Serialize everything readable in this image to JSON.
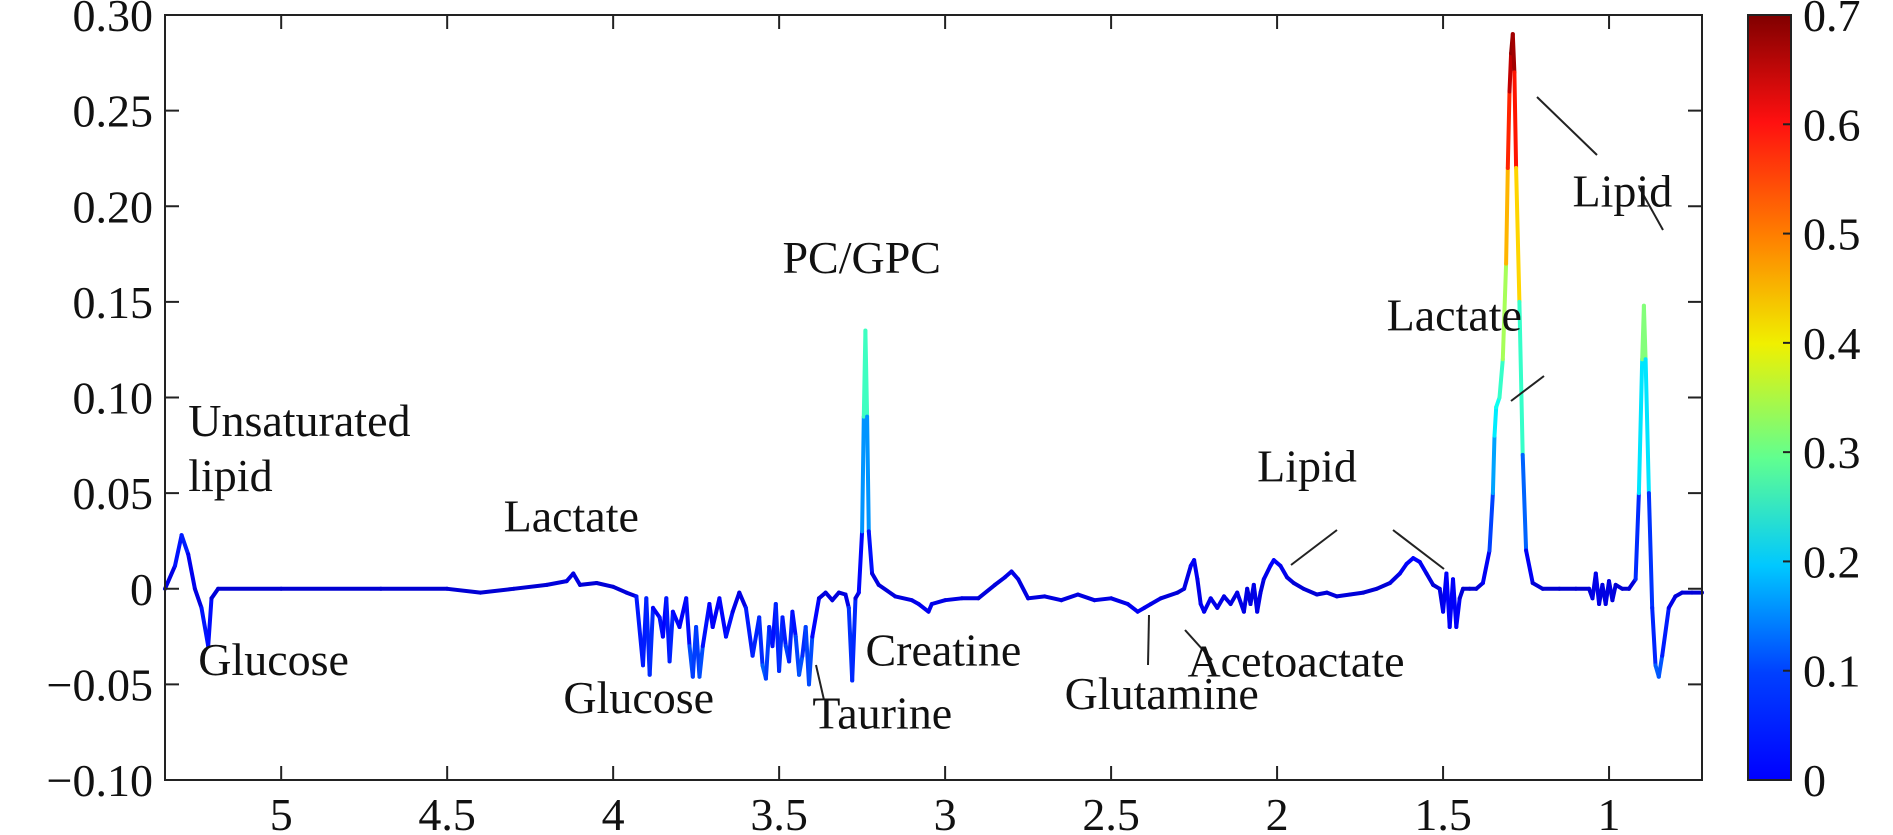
{
  "chart_data": {
    "type": "line",
    "title": "",
    "xlabel": "",
    "ylabel": "",
    "x_reversed": true,
    "xlim": [
      5.35,
      0.72
    ],
    "ylim": [
      -0.1,
      0.3
    ],
    "x_ticks": [
      5,
      4.5,
      4,
      3.5,
      3,
      2.5,
      2,
      1.5,
      1
    ],
    "x_tick_labels": [
      "5",
      "4.5",
      "4",
      "3.5",
      "3",
      "2.5",
      "2",
      "1.5",
      "1"
    ],
    "y_ticks": [
      -0.1,
      -0.05,
      0,
      0.05,
      0.1,
      0.15,
      0.2,
      0.25,
      0.3
    ],
    "y_tick_labels": [
      "−0.10",
      "−0.05",
      "0",
      "0.05",
      "0.10",
      "0.15",
      "0.20",
      "0.25",
      "0.30"
    ],
    "grid": false,
    "colorbar": {
      "colormap": "jet",
      "range": [
        0,
        0.7
      ],
      "tick_labels": [
        "0",
        "0.1",
        "0.2",
        "0.3",
        "0.4",
        "0.5",
        "0.6",
        "0.7"
      ]
    },
    "series": [
      {
        "points": [
          [
            5.35,
            0.0
          ],
          [
            5.32,
            0.012
          ],
          [
            5.3,
            0.028
          ],
          [
            5.28,
            0.018
          ],
          [
            5.26,
            0.0
          ],
          [
            5.24,
            -0.01
          ],
          [
            5.22,
            -0.03
          ],
          [
            5.21,
            -0.005
          ],
          [
            5.19,
            0.0
          ],
          [
            5.0,
            0.0
          ],
          [
            4.7,
            0.0
          ],
          [
            4.5,
            0.0
          ],
          [
            4.4,
            -0.002
          ],
          [
            4.3,
            0.0
          ],
          [
            4.2,
            0.002
          ],
          [
            4.14,
            0.004
          ],
          [
            4.12,
            0.008
          ],
          [
            4.1,
            0.002
          ],
          [
            4.05,
            0.003
          ],
          [
            4.0,
            0.001
          ],
          [
            3.96,
            -0.002
          ],
          [
            3.93,
            -0.004
          ],
          [
            3.91,
            -0.04
          ],
          [
            3.9,
            -0.005
          ],
          [
            3.89,
            -0.045
          ],
          [
            3.88,
            -0.01
          ],
          [
            3.86,
            -0.015
          ],
          [
            3.85,
            -0.025
          ],
          [
            3.84,
            -0.005
          ],
          [
            3.83,
            -0.038
          ],
          [
            3.82,
            -0.012
          ],
          [
            3.8,
            -0.02
          ],
          [
            3.78,
            -0.005
          ],
          [
            3.77,
            -0.03
          ],
          [
            3.76,
            -0.046
          ],
          [
            3.75,
            -0.02
          ],
          [
            3.74,
            -0.046
          ],
          [
            3.73,
            -0.03
          ],
          [
            3.71,
            -0.008
          ],
          [
            3.7,
            -0.02
          ],
          [
            3.68,
            -0.005
          ],
          [
            3.66,
            -0.025
          ],
          [
            3.64,
            -0.012
          ],
          [
            3.62,
            -0.002
          ],
          [
            3.6,
            -0.01
          ],
          [
            3.58,
            -0.035
          ],
          [
            3.56,
            -0.015
          ],
          [
            3.55,
            -0.04
          ],
          [
            3.54,
            -0.047
          ],
          [
            3.53,
            -0.02
          ],
          [
            3.52,
            -0.03
          ],
          [
            3.51,
            -0.008
          ],
          [
            3.5,
            -0.043
          ],
          [
            3.49,
            -0.015
          ],
          [
            3.48,
            -0.03
          ],
          [
            3.47,
            -0.038
          ],
          [
            3.46,
            -0.012
          ],
          [
            3.45,
            -0.025
          ],
          [
            3.44,
            -0.045
          ],
          [
            3.43,
            -0.035
          ],
          [
            3.42,
            -0.02
          ],
          [
            3.41,
            -0.05
          ],
          [
            3.4,
            -0.025
          ],
          [
            3.38,
            -0.005
          ],
          [
            3.36,
            -0.002
          ],
          [
            3.34,
            -0.006
          ],
          [
            3.32,
            -0.002
          ],
          [
            3.3,
            -0.003
          ],
          [
            3.29,
            -0.01
          ],
          [
            3.28,
            -0.048
          ],
          [
            3.27,
            -0.005
          ],
          [
            3.26,
            -0.002
          ],
          [
            3.25,
            0.03
          ],
          [
            3.245,
            0.09
          ],
          [
            3.24,
            0.135
          ],
          [
            3.235,
            0.09
          ],
          [
            3.23,
            0.03
          ],
          [
            3.22,
            0.008
          ],
          [
            3.2,
            0.002
          ],
          [
            3.15,
            -0.004
          ],
          [
            3.1,
            -0.006
          ],
          [
            3.08,
            -0.008
          ],
          [
            3.05,
            -0.012
          ],
          [
            3.04,
            -0.008
          ],
          [
            3.0,
            -0.006
          ],
          [
            2.95,
            -0.005
          ],
          [
            2.9,
            -0.005
          ],
          [
            2.85,
            0.002
          ],
          [
            2.82,
            0.006
          ],
          [
            2.8,
            0.009
          ],
          [
            2.78,
            0.005
          ],
          [
            2.75,
            -0.005
          ],
          [
            2.7,
            -0.004
          ],
          [
            2.65,
            -0.006
          ],
          [
            2.6,
            -0.003
          ],
          [
            2.55,
            -0.006
          ],
          [
            2.5,
            -0.005
          ],
          [
            2.45,
            -0.008
          ],
          [
            2.42,
            -0.012
          ],
          [
            2.4,
            -0.01
          ],
          [
            2.38,
            -0.008
          ],
          [
            2.35,
            -0.005
          ],
          [
            2.3,
            -0.002
          ],
          [
            2.28,
            0.0
          ],
          [
            2.26,
            0.012
          ],
          [
            2.25,
            0.015
          ],
          [
            2.24,
            0.005
          ],
          [
            2.23,
            -0.008
          ],
          [
            2.22,
            -0.012
          ],
          [
            2.2,
            -0.005
          ],
          [
            2.18,
            -0.01
          ],
          [
            2.16,
            -0.004
          ],
          [
            2.14,
            -0.008
          ],
          [
            2.12,
            -0.002
          ],
          [
            2.1,
            -0.012
          ],
          [
            2.09,
            0.0
          ],
          [
            2.08,
            -0.008
          ],
          [
            2.07,
            0.002
          ],
          [
            2.06,
            -0.012
          ],
          [
            2.05,
            -0.002
          ],
          [
            2.04,
            0.005
          ],
          [
            2.02,
            0.012
          ],
          [
            2.01,
            0.015
          ],
          [
            1.99,
            0.012
          ],
          [
            1.97,
            0.006
          ],
          [
            1.95,
            0.003
          ],
          [
            1.92,
            0.0
          ],
          [
            1.88,
            -0.003
          ],
          [
            1.85,
            -0.002
          ],
          [
            1.82,
            -0.004
          ],
          [
            1.78,
            -0.003
          ],
          [
            1.74,
            -0.002
          ],
          [
            1.7,
            0.0
          ],
          [
            1.66,
            0.003
          ],
          [
            1.63,
            0.008
          ],
          [
            1.61,
            0.013
          ],
          [
            1.59,
            0.016
          ],
          [
            1.57,
            0.014
          ],
          [
            1.55,
            0.008
          ],
          [
            1.53,
            0.002
          ],
          [
            1.51,
            0.0
          ],
          [
            1.5,
            -0.012
          ],
          [
            1.49,
            0.008
          ],
          [
            1.48,
            -0.02
          ],
          [
            1.47,
            0.005
          ],
          [
            1.46,
            -0.02
          ],
          [
            1.45,
            -0.005
          ],
          [
            1.44,
            0.0
          ],
          [
            1.42,
            0.0
          ],
          [
            1.4,
            0.0
          ],
          [
            1.38,
            0.003
          ],
          [
            1.36,
            0.02
          ],
          [
            1.35,
            0.05
          ],
          [
            1.345,
            0.08
          ],
          [
            1.34,
            0.095
          ],
          [
            1.33,
            0.1
          ],
          [
            1.32,
            0.12
          ],
          [
            1.31,
            0.17
          ],
          [
            1.305,
            0.22
          ],
          [
            1.3,
            0.26
          ],
          [
            1.295,
            0.28
          ],
          [
            1.29,
            0.29
          ],
          [
            1.285,
            0.27
          ],
          [
            1.28,
            0.22
          ],
          [
            1.27,
            0.15
          ],
          [
            1.26,
            0.07
          ],
          [
            1.25,
            0.02
          ],
          [
            1.23,
            0.003
          ],
          [
            1.2,
            0.0
          ],
          [
            1.15,
            0.0
          ],
          [
            1.1,
            0.0
          ],
          [
            1.06,
            0.0
          ],
          [
            1.05,
            -0.005
          ],
          [
            1.04,
            0.008
          ],
          [
            1.03,
            -0.008
          ],
          [
            1.02,
            0.002
          ],
          [
            1.01,
            -0.008
          ],
          [
            1.0,
            0.004
          ],
          [
            0.99,
            -0.006
          ],
          [
            0.98,
            0.002
          ],
          [
            0.96,
            0.0
          ],
          [
            0.94,
            0.0
          ],
          [
            0.92,
            0.005
          ],
          [
            0.91,
            0.05
          ],
          [
            0.9,
            0.12
          ],
          [
            0.895,
            0.148
          ],
          [
            0.89,
            0.12
          ],
          [
            0.88,
            0.05
          ],
          [
            0.87,
            -0.01
          ],
          [
            0.86,
            -0.04
          ],
          [
            0.85,
            -0.046
          ],
          [
            0.84,
            -0.035
          ],
          [
            0.82,
            -0.01
          ],
          [
            0.8,
            -0.004
          ],
          [
            0.78,
            -0.002
          ],
          [
            0.75,
            -0.002
          ],
          [
            0.72,
            -0.002
          ]
        ]
      }
    ],
    "annotations": [
      {
        "text": "Unsaturated",
        "x": 5.28,
        "y": 0.08
      },
      {
        "text": "lipid",
        "x": 5.28,
        "y": 0.051
      },
      {
        "text": "Glucose",
        "x": 5.25,
        "y": -0.045
      },
      {
        "text": "Lactate",
        "x": 4.33,
        "y": 0.03
      },
      {
        "text": "PC/GPC",
        "x": 3.49,
        "y": 0.165
      },
      {
        "text": "Glucose",
        "x": 4.15,
        "y": -0.065
      },
      {
        "text": "Taurine",
        "x": 3.4,
        "y": -0.073
      },
      {
        "text": "Creatine",
        "x": 3.24,
        "y": -0.04
      },
      {
        "text": "Glutamine",
        "x": 2.64,
        "y": -0.063
      },
      {
        "text": "Acetoactate",
        "x": 2.27,
        "y": -0.046
      },
      {
        "text": "Lipid",
        "x": 2.06,
        "y": 0.056
      },
      {
        "text": "Lactate",
        "x": 1.67,
        "y": 0.135
      },
      {
        "text": "Lipid",
        "x": 1.11,
        "y": 0.2
      }
    ]
  }
}
